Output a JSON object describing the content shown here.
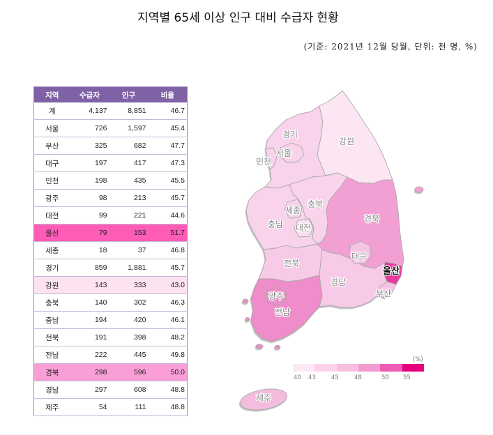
{
  "title": "지역별 65세 이상 인구 대비 수급자 현황",
  "subtitle": "(기준: 2021년 12월 당월, 단위: 천 명, %)",
  "table": {
    "headers": [
      "지역",
      "수급자",
      "인구",
      "비율"
    ],
    "header_color": "#7F62A6",
    "rows": [
      {
        "region": "계",
        "recipients": "4,137",
        "population": "8,851",
        "ratio": "46.7",
        "highlight": null
      },
      {
        "region": "서울",
        "recipients": "726",
        "population": "1,597",
        "ratio": "45.4",
        "highlight": null
      },
      {
        "region": "부산",
        "recipients": "325",
        "population": "682",
        "ratio": "47.7",
        "highlight": null
      },
      {
        "region": "대구",
        "recipients": "197",
        "population": "417",
        "ratio": "47.3",
        "highlight": null
      },
      {
        "region": "인천",
        "recipients": "198",
        "population": "435",
        "ratio": "45.5",
        "highlight": null
      },
      {
        "region": "광주",
        "recipients": "98",
        "population": "213",
        "ratio": "45.7",
        "highlight": null
      },
      {
        "region": "대전",
        "recipients": "99",
        "population": "221",
        "ratio": "44.6",
        "highlight": null
      },
      {
        "region": "울산",
        "recipients": "79",
        "population": "153",
        "ratio": "51.7",
        "highlight": "#FF5CB8"
      },
      {
        "region": "세종",
        "recipients": "18",
        "population": "37",
        "ratio": "46.8",
        "highlight": null
      },
      {
        "region": "경기",
        "recipients": "859",
        "population": "1,881",
        "ratio": "45.7",
        "highlight": null
      },
      {
        "region": "강원",
        "recipients": "143",
        "population": "333",
        "ratio": "43.0",
        "highlight": "#FDE3F2"
      },
      {
        "region": "충북",
        "recipients": "140",
        "population": "302",
        "ratio": "46.3",
        "highlight": null
      },
      {
        "region": "충남",
        "recipients": "194",
        "population": "420",
        "ratio": "46.1",
        "highlight": null
      },
      {
        "region": "전북",
        "recipients": "191",
        "population": "398",
        "ratio": "48.2",
        "highlight": null
      },
      {
        "region": "전남",
        "recipients": "222",
        "population": "445",
        "ratio": "49.8",
        "highlight": null
      },
      {
        "region": "경북",
        "recipients": "298",
        "population": "596",
        "ratio": "50.0",
        "highlight": "#FA9FD6"
      },
      {
        "region": "경남",
        "recipients": "297",
        "population": "608",
        "ratio": "48.8",
        "highlight": null
      },
      {
        "region": "제주",
        "recipients": "54",
        "population": "111",
        "ratio": "48.8",
        "highlight": null
      }
    ]
  },
  "map": {
    "regions": [
      {
        "label": "경기",
        "color": "#F8D3EB"
      },
      {
        "label": "서울",
        "color": "#F8D3EB"
      },
      {
        "label": "인천",
        "color": "#F8D3EB"
      },
      {
        "label": "강원",
        "color": "#FCE6F3"
      },
      {
        "label": "충북",
        "color": "#F8D3EB"
      },
      {
        "label": "세종",
        "color": "#F8D3EB"
      },
      {
        "label": "충남",
        "color": "#F8D3EB"
      },
      {
        "label": "대전",
        "color": "#FBDFF0"
      },
      {
        "label": "경북",
        "color": "#F2A0D4"
      },
      {
        "label": "대구",
        "color": "#F6C4E3"
      },
      {
        "label": "전북",
        "color": "#F7CBE7"
      },
      {
        "label": "울산",
        "color": "#E8399D"
      },
      {
        "label": "경남",
        "color": "#F7CBE7"
      },
      {
        "label": "부산",
        "color": "#F6C4E3"
      },
      {
        "label": "광주",
        "color": "#EE8DC9"
      },
      {
        "label": "전남",
        "color": "#EE8DC9"
      },
      {
        "label": "제주",
        "color": "#F4BCDF"
      }
    ],
    "legend": {
      "unit": "(%)",
      "ticks": [
        "40",
        "43",
        "45",
        "48",
        "50",
        "55"
      ],
      "colors": [
        "#FDE8F4",
        "#FAD3EA",
        "#F7BEE0",
        "#F29CD1",
        "#EC5CB3",
        "#E6007E"
      ]
    }
  }
}
